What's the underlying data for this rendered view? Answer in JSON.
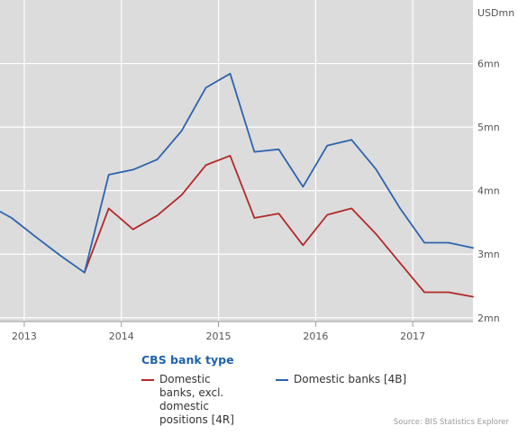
{
  "colors": {
    "plot_background": "#dcdcdc",
    "gridline": "#ffffff",
    "series_red": "#b22a2a",
    "series_blue": "#2e63ad",
    "legend_title": "#1f63a8"
  },
  "chart_data": {
    "type": "line",
    "title": "",
    "unit_label": "USDmn",
    "grid": true,
    "xlim": [
      2012.75,
      2017.62
    ],
    "ylim": [
      1.94,
      7.0
    ],
    "y_ticks": [
      {
        "value": 2,
        "label": "2mn"
      },
      {
        "value": 3,
        "label": "3mn"
      },
      {
        "value": 4,
        "label": "4mn"
      },
      {
        "value": 5,
        "label": "5mn"
      },
      {
        "value": 6,
        "label": "6mn"
      }
    ],
    "x_ticks": [
      {
        "value": 2013,
        "label": "2013"
      },
      {
        "value": 2014,
        "label": "2014"
      },
      {
        "value": 2015,
        "label": "2015"
      },
      {
        "value": 2016,
        "label": "2016"
      },
      {
        "value": 2017,
        "label": "2017"
      }
    ],
    "legend_title": "CBS bank type",
    "legend_placement": "bottom",
    "series": [
      {
        "name": "Domestic banks, excl. domestic positions [4R]",
        "color": "#b22a2a",
        "points": [
          [
            2013.62,
            2.71
          ],
          [
            2013.87,
            3.72
          ],
          [
            2014.12,
            3.39
          ],
          [
            2014.37,
            3.61
          ],
          [
            2014.62,
            3.93
          ],
          [
            2014.87,
            4.4
          ],
          [
            2015.12,
            4.55
          ],
          [
            2015.37,
            3.57
          ],
          [
            2015.62,
            3.64
          ],
          [
            2015.87,
            3.14
          ],
          [
            2016.12,
            3.62
          ],
          [
            2016.37,
            3.72
          ],
          [
            2016.62,
            3.32
          ],
          [
            2016.87,
            2.86
          ],
          [
            2017.12,
            2.4
          ],
          [
            2017.37,
            2.4
          ],
          [
            2017.62,
            2.33
          ]
        ]
      },
      {
        "name": "Domestic banks [4B]",
        "color": "#2e63ad",
        "points": [
          [
            2012.75,
            3.67
          ],
          [
            2012.87,
            3.57
          ],
          [
            2013.12,
            3.27
          ],
          [
            2013.37,
            2.98
          ],
          [
            2013.62,
            2.71
          ],
          [
            2013.87,
            4.25
          ],
          [
            2014.12,
            4.33
          ],
          [
            2014.37,
            4.49
          ],
          [
            2014.62,
            4.94
          ],
          [
            2014.87,
            5.62
          ],
          [
            2015.12,
            5.84
          ],
          [
            2015.37,
            4.61
          ],
          [
            2015.62,
            4.65
          ],
          [
            2015.87,
            4.06
          ],
          [
            2016.12,
            4.71
          ],
          [
            2016.37,
            4.8
          ],
          [
            2016.62,
            4.34
          ],
          [
            2016.87,
            3.72
          ],
          [
            2017.12,
            3.18
          ],
          [
            2017.37,
            3.18
          ],
          [
            2017.62,
            3.1
          ]
        ]
      }
    ]
  },
  "legend": {
    "title": "CBS bank type",
    "items": [
      {
        "label": "Domestic banks, excl. domestic positions [4R]",
        "color": "#b22a2a"
      },
      {
        "label": "Domestic banks [4B]",
        "color": "#2e63ad"
      }
    ]
  },
  "source_text": "Source: BIS Statistics Explorer"
}
